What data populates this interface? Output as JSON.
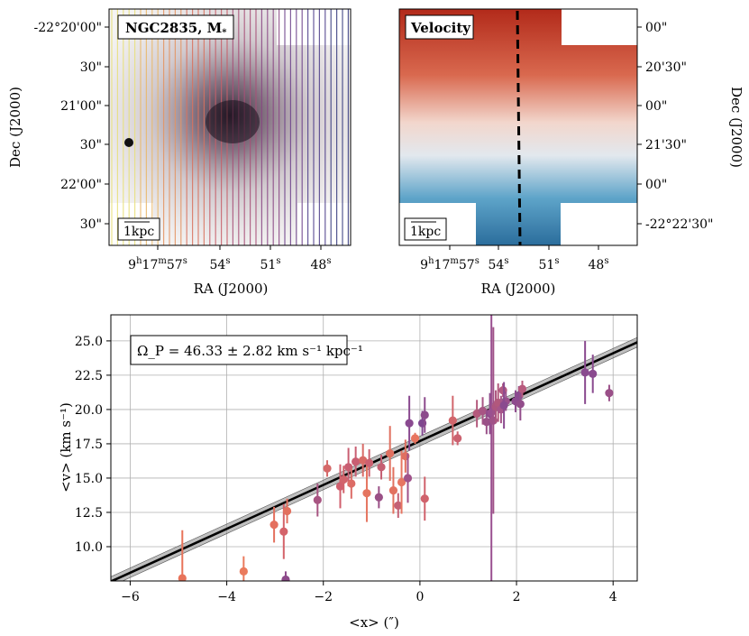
{
  "panels": {
    "mass": {
      "title": "NGC2835, M",
      "title_sub": "*",
      "scalebar": "1kpc"
    },
    "velocity": {
      "title": "Velocity",
      "scalebar": "1kpc"
    },
    "ra_ticks": [
      "9h17m57s",
      "54s",
      "51s",
      "48s"
    ],
    "ra_ticks_parts": [
      {
        "h": "9",
        "hs": "h",
        "m": "17",
        "ms": "m",
        "s": "57",
        "ss": "s"
      },
      {
        "s": "54",
        "ss": "s"
      },
      {
        "s": "51",
        "ss": "s"
      },
      {
        "s": "48",
        "ss": "s"
      }
    ],
    "ra_label": "RA (J2000)",
    "dec_label": "Dec (J2000)",
    "dec_ticks_left": [
      "-22°20'00\"",
      "30\"",
      "21'00\"",
      "30\"",
      "22'00\"",
      "30\""
    ],
    "dec_ticks_right": [
      "00\"",
      "20'30\"",
      "00\"",
      "21'30\"",
      "00\"",
      "-22°22'30\""
    ]
  },
  "chart_data": {
    "type": "scatter",
    "annotation": "Ω_P = 46.33 ± 2.82 km s⁻¹ kpc⁻¹",
    "xlabel": "<x> (″)",
    "ylabel": "<v> (km s⁻¹)",
    "xlim": [
      -6.4,
      4.5
    ],
    "ylim": [
      7.5,
      26.9
    ],
    "xticks": [
      -6,
      -4,
      -2,
      0,
      2,
      4
    ],
    "xtick_labels": [
      "−6",
      "−4",
      "−2",
      "0",
      "2",
      "4"
    ],
    "yticks": [
      10.0,
      12.5,
      15.0,
      17.5,
      20.0,
      22.5,
      25.0
    ],
    "ytick_labels": [
      "10.0",
      "12.5",
      "15.0",
      "17.5",
      "20.0",
      "22.5",
      "25.0"
    ],
    "grid": true,
    "fit": {
      "slope": 1.6,
      "intercept": 17.7,
      "band": 0.35
    },
    "points": [
      {
        "x": -4.92,
        "y": 7.7,
        "err": 3.5,
        "color": "#e8735a"
      },
      {
        "x": -3.65,
        "y": 8.2,
        "err": 1.1,
        "color": "#ea7a5c"
      },
      {
        "x": -3.02,
        "y": 11.6,
        "err": 1.3,
        "color": "#e4705e"
      },
      {
        "x": -2.82,
        "y": 11.1,
        "err": 2.0,
        "color": "#d4636a"
      },
      {
        "x": -2.75,
        "y": 12.6,
        "err": 0.9,
        "color": "#e2705e"
      },
      {
        "x": -2.78,
        "y": 7.6,
        "err": 0.6,
        "color": "#8d4a8a"
      },
      {
        "x": -2.12,
        "y": 13.4,
        "err": 1.2,
        "color": "#a85582"
      },
      {
        "x": -1.92,
        "y": 15.7,
        "err": 0.6,
        "color": "#d56868"
      },
      {
        "x": -1.65,
        "y": 14.4,
        "err": 1.6,
        "color": "#d05f6e"
      },
      {
        "x": -1.58,
        "y": 14.9,
        "err": 1.0,
        "color": "#d2646c"
      },
      {
        "x": -1.48,
        "y": 15.8,
        "err": 1.4,
        "color": "#c95e72"
      },
      {
        "x": -1.42,
        "y": 14.6,
        "err": 1.1,
        "color": "#dc6c66"
      },
      {
        "x": -1.33,
        "y": 16.2,
        "err": 1.1,
        "color": "#c95e72"
      },
      {
        "x": -1.18,
        "y": 16.3,
        "err": 1.2,
        "color": "#d86a66"
      },
      {
        "x": -1.1,
        "y": 13.9,
        "err": 2.1,
        "color": "#e57560"
      },
      {
        "x": -1.05,
        "y": 16.1,
        "err": 1.0,
        "color": "#cb6070"
      },
      {
        "x": -0.85,
        "y": 13.6,
        "err": 0.8,
        "color": "#9a5086"
      },
      {
        "x": -0.8,
        "y": 15.8,
        "err": 0.9,
        "color": "#c55f72"
      },
      {
        "x": -0.62,
        "y": 16.8,
        "err": 2.0,
        "color": "#e07060"
      },
      {
        "x": -0.55,
        "y": 14.1,
        "err": 1.7,
        "color": "#e27260"
      },
      {
        "x": -0.45,
        "y": 13.0,
        "err": 0.9,
        "color": "#c46074"
      },
      {
        "x": -0.38,
        "y": 14.7,
        "err": 2.3,
        "color": "#e77662"
      },
      {
        "x": -0.3,
        "y": 16.6,
        "err": 1.2,
        "color": "#e07060"
      },
      {
        "x": -0.25,
        "y": 15.0,
        "err": 1.8,
        "color": "#a0528a"
      },
      {
        "x": -0.22,
        "y": 19.0,
        "err": 2.0,
        "color": "#8a4a90"
      },
      {
        "x": -0.1,
        "y": 17.9,
        "err": 0.4,
        "color": "#e8745f"
      },
      {
        "x": 0.05,
        "y": 19.0,
        "err": 0.9,
        "color": "#7f478f"
      },
      {
        "x": 0.1,
        "y": 19.6,
        "err": 1.3,
        "color": "#8c4b8c"
      },
      {
        "x": 0.1,
        "y": 13.5,
        "err": 1.6,
        "color": "#d0626c"
      },
      {
        "x": 0.68,
        "y": 19.2,
        "err": 1.8,
        "color": "#d2666c"
      },
      {
        "x": 0.78,
        "y": 17.9,
        "err": 0.5,
        "color": "#cc6270"
      },
      {
        "x": 1.18,
        "y": 19.7,
        "err": 1.0,
        "color": "#b45a7c"
      },
      {
        "x": 1.3,
        "y": 19.9,
        "err": 1.0,
        "color": "#a85584"
      },
      {
        "x": 1.38,
        "y": 19.1,
        "err": 0.9,
        "color": "#9a5188"
      },
      {
        "x": 1.45,
        "y": 19.7,
        "err": 1.5,
        "color": "#8f4c8c"
      },
      {
        "x": 1.48,
        "y": 19.8,
        "err": 13.0,
        "color": "#9a5090"
      },
      {
        "x": 1.52,
        "y": 19.2,
        "err": 6.8,
        "color": "#a05288"
      },
      {
        "x": 1.57,
        "y": 20.2,
        "err": 1.2,
        "color": "#ad567f"
      },
      {
        "x": 1.62,
        "y": 20.5,
        "err": 1.4,
        "color": "#b2587c"
      },
      {
        "x": 1.68,
        "y": 20.0,
        "err": 1.0,
        "color": "#a7558a"
      },
      {
        "x": 1.72,
        "y": 21.4,
        "err": 0.5,
        "color": "#b35a82"
      },
      {
        "x": 1.78,
        "y": 20.6,
        "err": 0.7,
        "color": "#9a4f8c"
      },
      {
        "x": 1.74,
        "y": 20.3,
        "err": 1.7,
        "color": "#8a4a8f"
      },
      {
        "x": 1.98,
        "y": 20.6,
        "err": 0.8,
        "color": "#8e4b8e"
      },
      {
        "x": 2.05,
        "y": 21.0,
        "err": 0.7,
        "color": "#8a498f"
      },
      {
        "x": 2.08,
        "y": 20.4,
        "err": 1.2,
        "color": "#924d8b"
      },
      {
        "x": 2.12,
        "y": 21.5,
        "err": 0.6,
        "color": "#b85b7e"
      },
      {
        "x": 3.42,
        "y": 22.7,
        "err": 2.3,
        "color": "#8a4a8f"
      },
      {
        "x": 3.58,
        "y": 22.6,
        "err": 1.4,
        "color": "#8a4a8f"
      },
      {
        "x": 3.92,
        "y": 21.2,
        "err": 0.6,
        "color": "#9a4f88"
      }
    ]
  }
}
